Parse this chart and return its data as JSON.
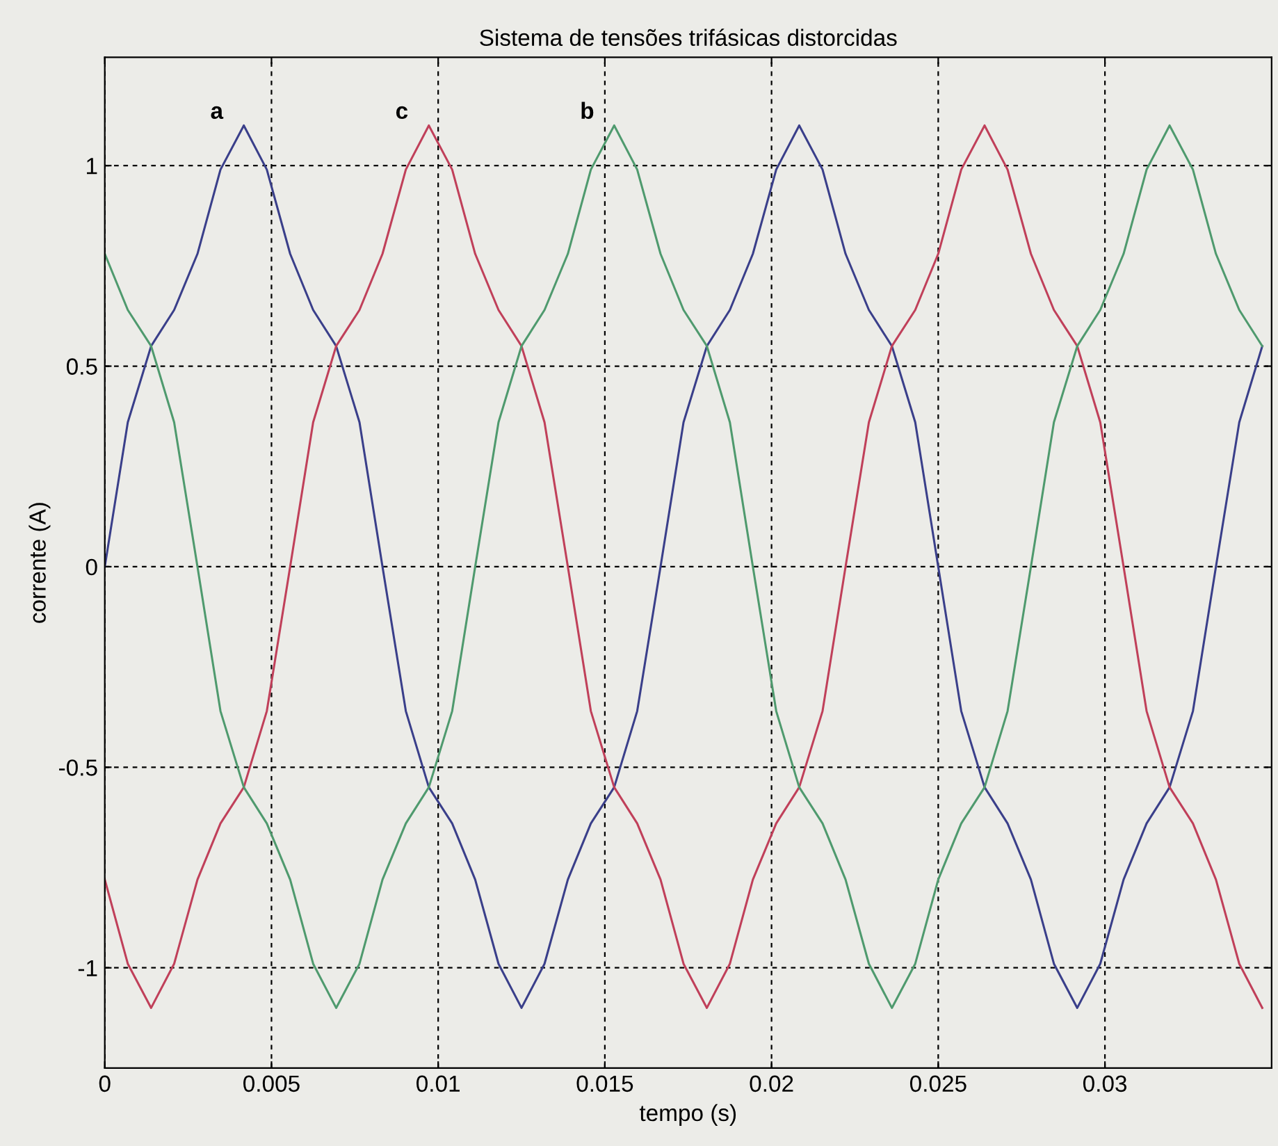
{
  "chart_data": {
    "type": "line",
    "title": "Sistema de tensões trifásicas distorcidas",
    "xlabel": "tempo (s)",
    "ylabel": "corrente (A)",
    "x": [
      0,
      0.00069,
      0.00139,
      0.00208,
      0.00278,
      0.00347,
      0.00417,
      0.00486,
      0.00556,
      0.00625,
      0.00694,
      0.00764,
      0.00833,
      0.00903,
      0.00972,
      0.01042,
      0.01111,
      0.01181,
      0.0125,
      0.01319,
      0.01389,
      0.01458,
      0.01528,
      0.01597,
      0.01667,
      0.01736,
      0.01806,
      0.01875,
      0.01944,
      0.02014,
      0.02083,
      0.02153,
      0.02222,
      0.02292,
      0.02361,
      0.02431,
      0.025,
      0.02569,
      0.02639,
      0.02708,
      0.02778,
      0.02847,
      0.02917,
      0.02986,
      0.03056,
      0.03125,
      0.03194,
      0.03264,
      0.03333,
      0.03403,
      0.03472
    ],
    "series": [
      {
        "name": "a",
        "color": "#3a3f8a",
        "values": [
          0,
          0.36,
          0.55,
          0.64,
          0.78,
          0.99,
          1.1,
          0.99,
          0.78,
          0.64,
          0.55,
          0.36,
          0,
          -0.36,
          -0.55,
          -0.64,
          -0.78,
          -0.99,
          -1.1,
          -0.99,
          -0.78,
          -0.64,
          -0.55,
          -0.36,
          0,
          0.36,
          0.55,
          0.64,
          0.78,
          0.99,
          1.1,
          0.99,
          0.78,
          0.64,
          0.55,
          0.36,
          0,
          -0.36,
          -0.55,
          -0.64,
          -0.78,
          -0.99,
          -1.1,
          -0.99,
          -0.78,
          -0.64,
          -0.55,
          -0.36,
          0,
          0.36,
          0.55
        ]
      },
      {
        "name": "c",
        "color": "#c0405a",
        "values": [
          -0.78,
          -0.99,
          -1.1,
          -0.99,
          -0.78,
          -0.64,
          -0.55,
          -0.36,
          0,
          0.36,
          0.55,
          0.64,
          0.78,
          0.99,
          1.1,
          0.99,
          0.78,
          0.64,
          0.55,
          0.36,
          0,
          -0.36,
          -0.55,
          -0.64,
          -0.78,
          -0.99,
          -1.1,
          -0.99,
          -0.78,
          -0.64,
          -0.55,
          -0.36,
          0,
          0.36,
          0.55,
          0.64,
          0.78,
          0.99,
          1.1,
          0.99,
          0.78,
          0.64,
          0.55,
          0.36,
          0,
          -0.36,
          -0.55,
          -0.64,
          -0.78,
          -0.99,
          -1.1
        ]
      },
      {
        "name": "b",
        "color": "#4f9a6e",
        "values": [
          0.78,
          0.64,
          0.55,
          0.36,
          0,
          -0.36,
          -0.55,
          -0.64,
          -0.78,
          -0.99,
          -1.1,
          -0.99,
          -0.78,
          -0.64,
          -0.55,
          -0.36,
          0,
          0.36,
          0.55,
          0.64,
          0.78,
          0.99,
          1.1,
          0.99,
          0.78,
          0.64,
          0.55,
          0.36,
          0,
          -0.36,
          -0.55,
          -0.64,
          -0.78,
          -0.99,
          -1.1,
          -0.99,
          -0.78,
          -0.64,
          -0.55,
          -0.36,
          0,
          0.36,
          0.55,
          0.64,
          0.78,
          0.99,
          1.1,
          0.99,
          0.78,
          0.64,
          0.55
        ]
      }
    ],
    "xlim": [
      0,
      0.035
    ],
    "xticks": [
      0,
      0.005,
      0.01,
      0.015,
      0.02,
      0.025,
      0.03
    ],
    "ylim": [
      -1.25,
      1.27
    ],
    "yticks": [
      -1,
      -0.5,
      0,
      0.5,
      1
    ],
    "grid": true,
    "line_style": "solid",
    "marker": "none",
    "legend": false
  }
}
